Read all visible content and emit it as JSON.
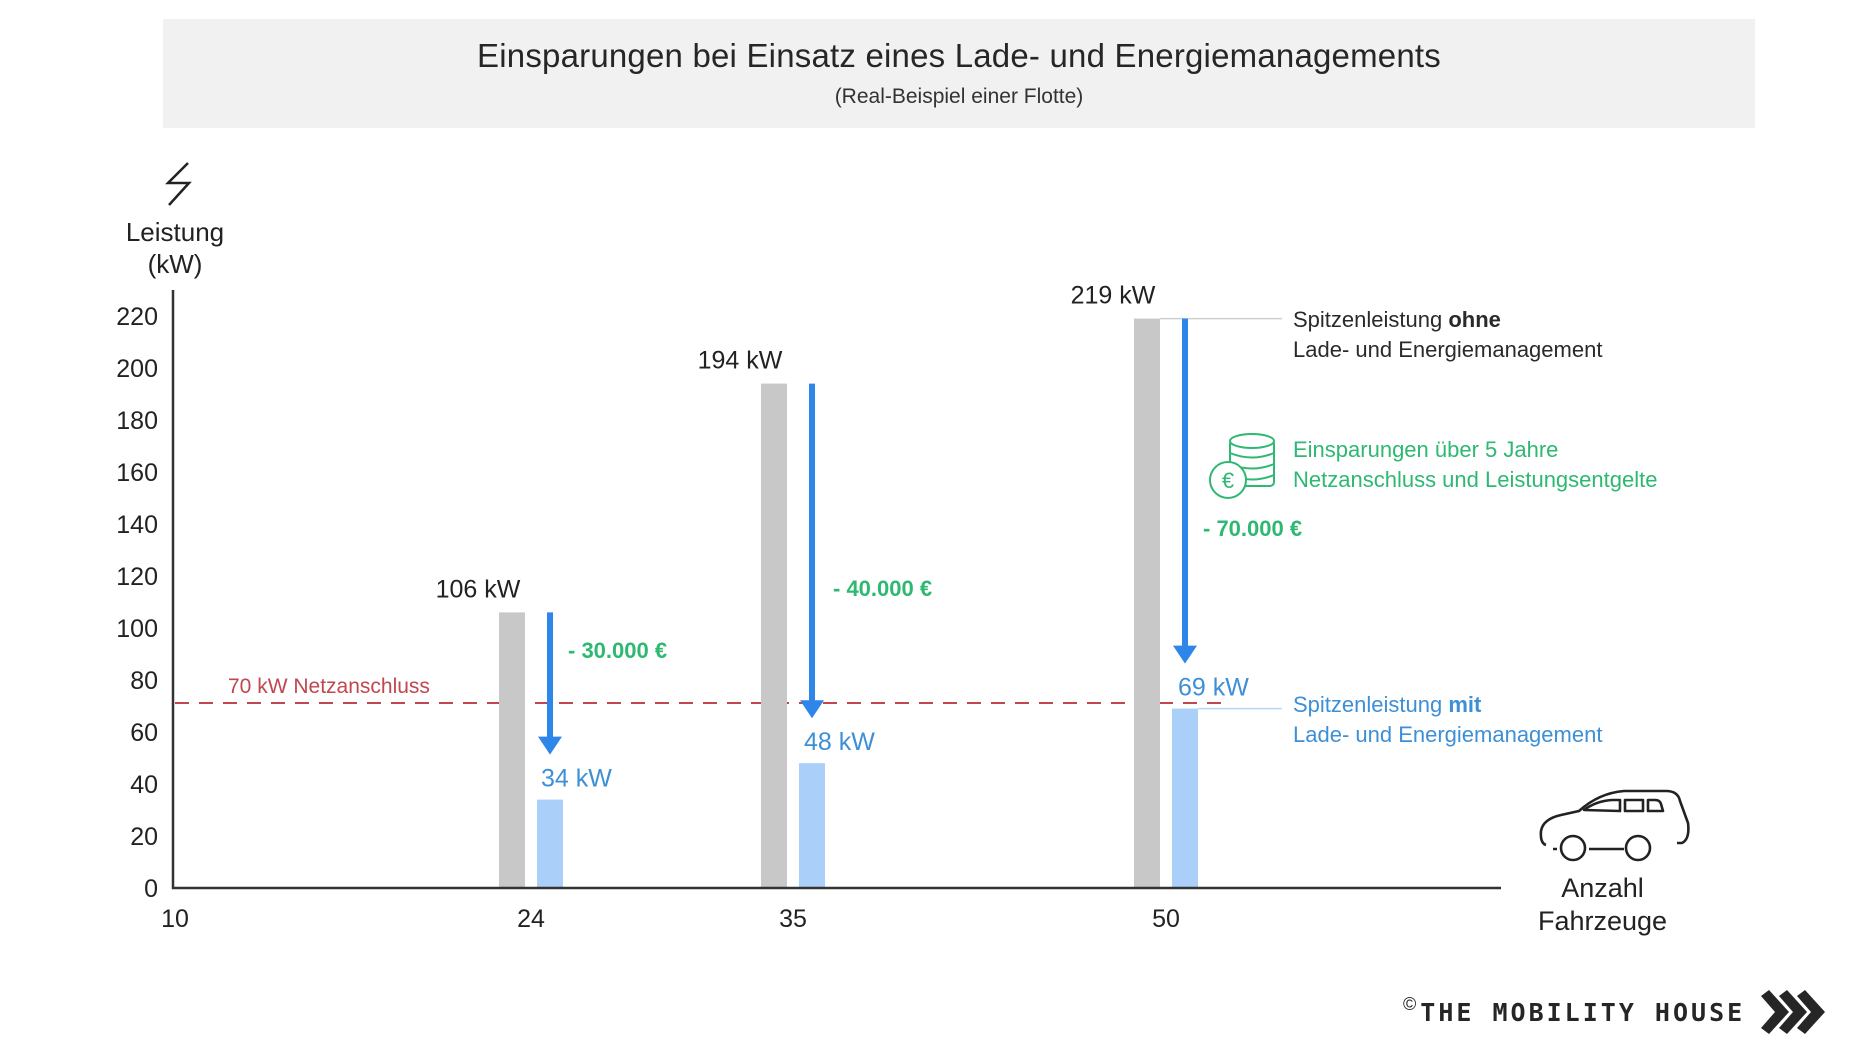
{
  "header": {
    "title": "Einsparungen bei Einsatz eines Lade- und Energiemanagements",
    "subtitle": "(Real-Beispiel einer Flotte)"
  },
  "y_axis": {
    "icon": "lightning-icon",
    "label_line1": "Leistung",
    "label_line2": "(kW)"
  },
  "x_axis": {
    "icon": "car-icon",
    "label_line1": "Anzahl",
    "label_line2": "Fahrzeuge"
  },
  "annotations": {
    "without_line1_a": "Spitzenleistung ",
    "without_line1_b": "ohne",
    "without_line2": "Lade- und Energiemanagement",
    "with_line1_a": "Spitzenleistung ",
    "with_line1_b": "mit",
    "with_line2": "Lade- und Energiemanagement",
    "savings_line1": "Einsparungen über 5 Jahre",
    "savings_line2": "Netzanschluss und Leistungsentgelte",
    "savings_icon": "euro-coins-icon"
  },
  "logo": {
    "copyright": "©",
    "name": "THE MOBILITY HOUSE"
  },
  "colors": {
    "without": "#c8c8c8",
    "with": "#aacff8",
    "arrow": "#2f86ea",
    "savings": "#2eb872",
    "grid_limit": "#c0474f",
    "with_text": "#3d8fd6"
  },
  "chart_data": {
    "type": "bar",
    "title": "Einsparungen bei Einsatz eines Lade- und Energiemanagements",
    "subtitle": "(Real-Beispiel einer Flotte)",
    "xlabel": "Anzahl Fahrzeuge",
    "ylabel": "Leistung (kW)",
    "ylim": [
      0,
      220
    ],
    "yticks": [
      "0",
      "20",
      "40",
      "60",
      "80",
      "100",
      "120",
      "140",
      "160",
      "180",
      "200",
      "220"
    ],
    "x_ticks": [
      "10",
      "24",
      "35",
      "50"
    ],
    "categories": [
      "24",
      "35",
      "50"
    ],
    "series": [
      {
        "name": "Spitzenleistung ohne Lade- und Energiemanagement",
        "values": [
          106,
          194,
          219
        ],
        "labels": [
          "106 kW",
          "194 kW",
          "219 kW"
        ]
      },
      {
        "name": "Spitzenleistung mit Lade- und Energiemanagement",
        "values": [
          34,
          48,
          69
        ],
        "labels": [
          "34 kW",
          "48 kW",
          "69 kW"
        ]
      }
    ],
    "savings": [
      "- 30.000 €",
      "- 40.000 €",
      "- 70.000 €"
    ],
    "reference_line": {
      "value": 70,
      "label": "70 kW Netzanschluss"
    },
    "grid": false,
    "legend": "right"
  }
}
